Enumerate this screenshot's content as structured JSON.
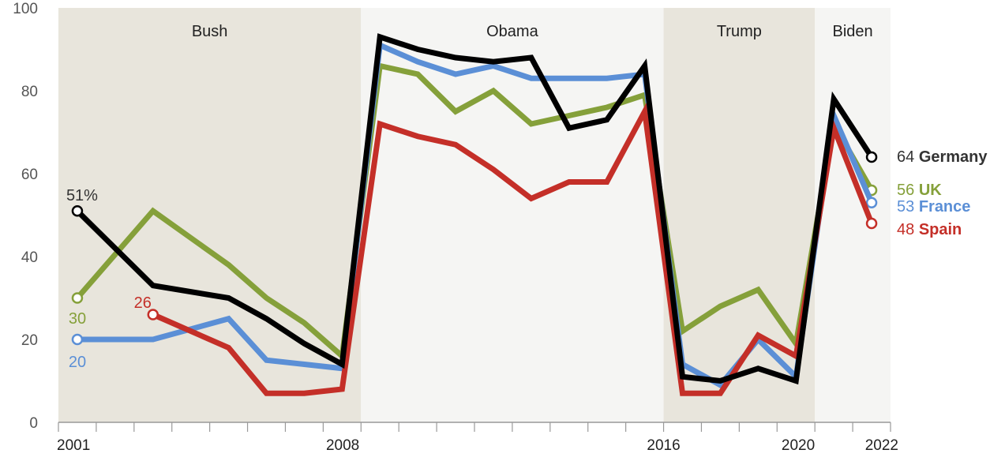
{
  "chart_data": {
    "type": "line",
    "title": "",
    "xlabel": "",
    "ylabel": "",
    "xlim": [
      2001,
      2022
    ],
    "ylim": [
      0,
      100
    ],
    "y_ticks": [
      "0",
      "20",
      "40",
      "60",
      "80",
      "100"
    ],
    "x_tick_labels": [
      "2001",
      "2008",
      "2016",
      "2020",
      "2022"
    ],
    "grid": false,
    "eras": [
      {
        "name": "Bush",
        "start": 2001,
        "end": 2008,
        "color": "#e8e5dc"
      },
      {
        "name": "Obama",
        "start": 2009,
        "end": 2016,
        "color": "#f5f5f3"
      },
      {
        "name": "Trump",
        "start": 2017,
        "end": 2020,
        "color": "#e8e5dc"
      },
      {
        "name": "Biden",
        "start": 2021,
        "end": 2022,
        "color": "#f5f5f3"
      }
    ],
    "series": [
      {
        "name": "UK",
        "color": "#85a03a",
        "x": [
          2001,
          2003,
          2005,
          2006,
          2007,
          2008,
          2009,
          2010,
          2011,
          2012,
          2013,
          2014,
          2015,
          2016,
          2017,
          2018,
          2019,
          2020,
          2021,
          2022
        ],
        "values": [
          30,
          51,
          38,
          30,
          24,
          16,
          86,
          84,
          75,
          80,
          72,
          74,
          76,
          79,
          22,
          28,
          32,
          19,
          72,
          56
        ],
        "start_label": "30",
        "end_value": "56"
      },
      {
        "name": "France",
        "color": "#5b8fd6",
        "x": [
          2001,
          2003,
          2005,
          2006,
          2007,
          2008,
          2009,
          2010,
          2011,
          2012,
          2013,
          2014,
          2015,
          2016,
          2017,
          2018,
          2019,
          2020,
          2021,
          2022
        ],
        "values": [
          20,
          20,
          25,
          15,
          14,
          13,
          91,
          87,
          84,
          86,
          83,
          83,
          83,
          84,
          14,
          9,
          20,
          11,
          74,
          53
        ],
        "start_label": "20",
        "end_value": "53"
      },
      {
        "name": "Spain",
        "color": "#c42f28",
        "x": [
          2003,
          2005,
          2006,
          2007,
          2008,
          2009,
          2010,
          2011,
          2012,
          2013,
          2014,
          2015,
          2016,
          2017,
          2018,
          2019,
          2020,
          2021,
          2022
        ],
        "values": [
          26,
          18,
          7,
          7,
          8,
          72,
          69,
          67,
          61,
          54,
          58,
          58,
          75,
          7,
          7,
          21,
          16,
          71,
          48
        ],
        "start_label": "26",
        "end_value": "48"
      },
      {
        "name": "Germany",
        "color": "#000000",
        "x": [
          2001,
          2003,
          2005,
          2006,
          2007,
          2008,
          2009,
          2010,
          2011,
          2012,
          2013,
          2014,
          2015,
          2016,
          2017,
          2018,
          2019,
          2020,
          2021,
          2022
        ],
        "values": [
          51,
          33,
          30,
          25,
          19,
          14,
          93,
          90,
          88,
          87,
          88,
          71,
          73,
          86,
          11,
          10,
          13,
          10,
          78,
          64
        ],
        "start_label": "51%",
        "end_value": "64"
      }
    ]
  }
}
